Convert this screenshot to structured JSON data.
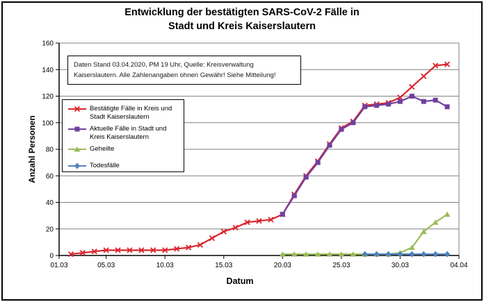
{
  "chart": {
    "title_line1": "Entwicklung der bestätigten SARS-CoV-2 Fälle in",
    "title_line2": "Stadt und Kreis Kaiserslautern",
    "y_label": "Anzahl Personen",
    "x_label": "Datum"
  },
  "annotation": {
    "line1": "Daten Stand 03.04.2020, PM 19 Uhr, Quelle: Kreisverwaltung",
    "line2": "Kaiserslautern. Alle Zahlenangaben ohnen Gewähr! Siehe Mitteilung!"
  },
  "chart_data": {
    "type": "line",
    "title": "Entwicklung der bestätigten SARS-CoV-2 Fälle in Stadt und Kreis Kaiserslautern",
    "xlabel": "Datum",
    "ylabel": "Anzahl Personen",
    "ylim": [
      0,
      160
    ],
    "y_ticks": [
      0,
      20,
      40,
      60,
      80,
      100,
      120,
      140,
      160
    ],
    "x_ticks": [
      "01.03",
      "05.03",
      "10.03",
      "15.03",
      "20.03",
      "25.03",
      "30.03",
      "04.04"
    ],
    "x_range": [
      "01.03",
      "04.04"
    ],
    "grid": "horizontal",
    "legend_position": "inside-left",
    "axis_color": "#000000",
    "gridline_color": "#808080",
    "series": [
      {
        "id": "series-bestaetigte-faelle",
        "name": "Bestätigte Fälle in Kreis und Stadt Kaiserslautern",
        "color": "#d9252b",
        "marker": "x",
        "dates": [
          "02.03",
          "03.03",
          "04.03",
          "05.03",
          "06.03",
          "07.03",
          "08.03",
          "09.03",
          "10.03",
          "11.03",
          "12.03",
          "13.03",
          "14.03",
          "15.03",
          "16.03",
          "17.03",
          "18.03",
          "19.03",
          "20.03",
          "21.03",
          "22.03",
          "23.03",
          "24.03",
          "25.03",
          "26.03",
          "27.03",
          "28.03",
          "29.03",
          "30.03",
          "31.03",
          "01.04",
          "02.04",
          "03.04"
        ],
        "values": [
          1,
          2,
          3,
          4,
          4,
          4,
          4,
          4,
          4,
          5,
          6,
          8,
          13,
          18,
          21,
          25,
          26,
          27,
          31,
          46,
          60,
          71,
          84,
          96,
          101,
          113,
          114,
          115,
          119,
          127,
          135,
          143,
          144
        ]
      },
      {
        "id": "series-aktuelle-faelle",
        "name": "Aktuelle Fälle in Stadt und Kreis Kaiserslautern",
        "color": "#7040a0",
        "marker": "square",
        "dates": [
          "20.03",
          "21.03",
          "22.03",
          "23.03",
          "24.03",
          "25.03",
          "26.03",
          "27.03",
          "28.03",
          "29.03",
          "30.03",
          "31.03",
          "01.04",
          "02.04",
          "03.04"
        ],
        "values": [
          31,
          45,
          59,
          70,
          83,
          95,
          100,
          112,
          113,
          114,
          116,
          120,
          116,
          117,
          112
        ]
      },
      {
        "id": "series-geheilte",
        "name": "Geheilte",
        "color": "#9bbb59",
        "marker": "triangle",
        "dates": [
          "20.03",
          "21.03",
          "22.03",
          "23.03",
          "24.03",
          "25.03",
          "26.03",
          "27.03",
          "28.03",
          "29.03",
          "30.03",
          "31.03",
          "01.04",
          "02.04",
          "03.04"
        ],
        "values": [
          1,
          1,
          1,
          1,
          1,
          1,
          1,
          1,
          1,
          1,
          2,
          6,
          18,
          25,
          31
        ]
      },
      {
        "id": "series-todesfaelle",
        "name": "Todesfälle",
        "color": "#4f81bd",
        "marker": "diamond",
        "dates": [
          "27.03",
          "28.03",
          "29.03",
          "30.03",
          "31.03",
          "01.04",
          "02.04",
          "03.04"
        ],
        "values": [
          1,
          1,
          1,
          1,
          1,
          1,
          1,
          1
        ]
      }
    ]
  }
}
